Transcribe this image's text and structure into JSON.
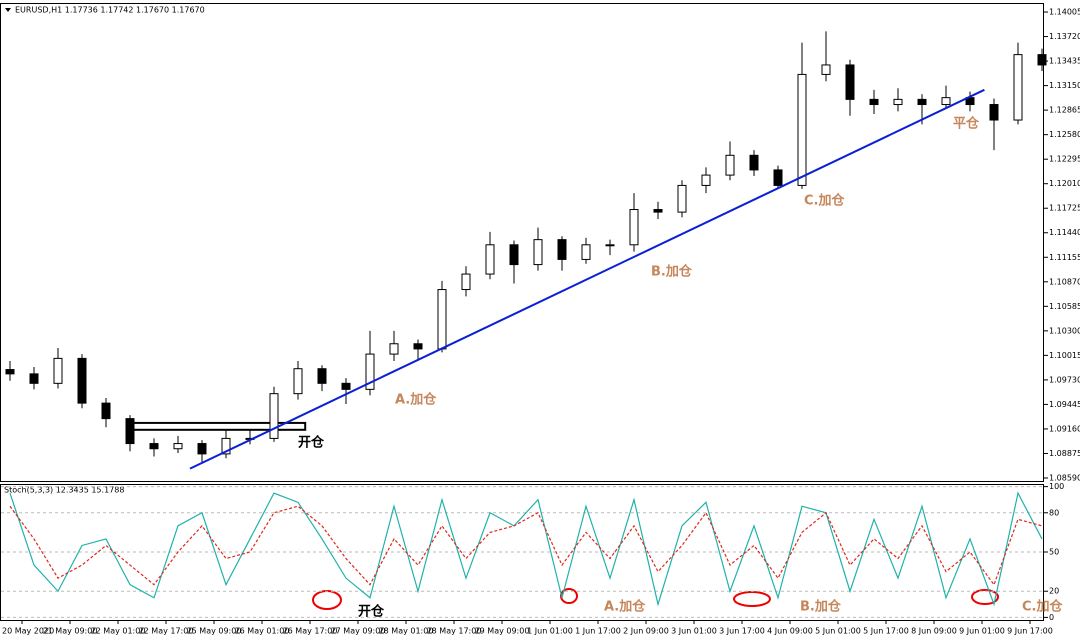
{
  "chart_data": [
    {
      "type": "candlestick",
      "title": "EURUSD,H1  1.17736 1.17742 1.17670 1.17670",
      "categories": [
        "20 May 2020",
        null,
        "21 May 09:00",
        null,
        "22 May 01:00",
        null,
        "22 May 17:00",
        null,
        "25 May 09:00",
        null,
        "26 May 01:00",
        null,
        "26 May 17:00",
        null,
        "27 May 09:00",
        null,
        "28 May 01:00",
        null,
        "28 May 17:00",
        null,
        "29 May 09:00",
        null,
        "1 Jun 01:00",
        null,
        "1 Jun 17:00",
        null,
        "2 Jun 09:00",
        null,
        "3 Jun 01:00",
        null,
        "3 Jun 17:00",
        null,
        "4 Jun 09:00",
        null,
        "5 Jun 01:00",
        null,
        "5 Jun 17:00",
        null,
        "8 Jun 09:00",
        null,
        "9 Jun 01:00",
        null,
        "9 Jun 17:00",
        null
      ],
      "open": [
        1.0985,
        1.098,
        1.0969,
        1.0998,
        1.0946,
        1.0928,
        1.0899,
        1.0893,
        1.0899,
        1.0887,
        1.0905,
        1.0905,
        1.0957,
        1.0986,
        1.0969,
        1.0962,
        1.1003,
        1.1015,
        1.1009,
        1.1078,
        1.1096,
        1.113,
        1.1107,
        1.1136,
        1.1113,
        1.113,
        1.113,
        1.1171,
        1.1168,
        1.1199,
        1.1211,
        1.1234,
        1.1217,
        1.1199,
        1.1328,
        1.1339,
        1.1299,
        1.1293,
        1.1299,
        1.1293,
        1.1301,
        1.1293,
        1.1275,
        1.1351
      ],
      "high": [
        1.0995,
        1.0988,
        1.101,
        1.1003,
        1.0952,
        1.0932,
        1.0905,
        1.0908,
        1.0903,
        1.0914,
        1.0915,
        1.0965,
        1.0995,
        1.099,
        1.0975,
        1.103,
        1.103,
        1.102,
        1.1088,
        1.1105,
        1.1145,
        1.1135,
        1.115,
        1.114,
        1.1138,
        1.1136,
        1.119,
        1.118,
        1.1205,
        1.122,
        1.125,
        1.124,
        1.1222,
        1.1365,
        1.1378,
        1.1345,
        1.131,
        1.1312,
        1.1305,
        1.1315,
        1.1308,
        1.13,
        1.1365,
        1.1358
      ],
      "low": [
        1.0972,
        1.0962,
        1.0963,
        1.094,
        1.0918,
        1.089,
        1.0884,
        1.0888,
        1.0876,
        1.0882,
        1.0898,
        1.0901,
        1.095,
        1.096,
        1.0945,
        1.0955,
        1.0995,
        1.0995,
        1.1005,
        1.107,
        1.109,
        1.1085,
        1.11,
        1.11,
        1.1108,
        1.1118,
        1.1122,
        1.116,
        1.1162,
        1.119,
        1.1205,
        1.121,
        1.1195,
        1.1195,
        1.132,
        1.128,
        1.1282,
        1.1285,
        1.127,
        1.1288,
        1.1285,
        1.124,
        1.127,
        1.1332
      ],
      "close": [
        1.098,
        1.0969,
        1.0998,
        1.0946,
        1.0928,
        1.0899,
        1.0893,
        1.0899,
        1.0887,
        1.0905,
        1.0905,
        1.0957,
        1.0986,
        1.0969,
        1.0962,
        1.1003,
        1.1015,
        1.1009,
        1.1078,
        1.1096,
        1.113,
        1.1107,
        1.1136,
        1.1113,
        1.113,
        1.113,
        1.1171,
        1.1168,
        1.1199,
        1.1211,
        1.1234,
        1.1217,
        1.1199,
        1.1328,
        1.1339,
        1.1299,
        1.1293,
        1.1299,
        1.1293,
        1.1301,
        1.1293,
        1.1275,
        1.1351,
        1.1339
      ],
      "ylim": [
        1.08555,
        1.1411
      ],
      "yticks": [
        1.14005,
        {
          "value": 1.1372,
          "label": "1.13720"
        },
        1.13435,
        {
          "value": 1.1315,
          "label": "1.13150"
        },
        1.12865,
        {
          "value": 1.1258,
          "label": "1.12580"
        },
        1.12295,
        {
          "value": 1.1201,
          "label": "1.12010"
        },
        1.11725,
        {
          "value": 1.1144,
          "label": "1.11440"
        },
        1.11155,
        {
          "value": 1.1087,
          "label": "1.10870"
        },
        1.10585,
        {
          "value": 1.103,
          "label": "1.10300"
        },
        1.10015,
        {
          "value": 1.0973,
          "label": "1.09730"
        },
        1.09445,
        {
          "value": 1.0916,
          "label": "1.09160"
        },
        1.08875,
        {
          "value": 1.0859,
          "label": "1.08590"
        }
      ],
      "trendline": {
        "color": "#0a1fd6",
        "x": [
          7.5,
          40.6
        ],
        "y": [
          1.08699,
          1.13101
        ]
      },
      "range_box": {
        "x": [
          4.9,
          12.3
        ],
        "y": [
          1.0915,
          1.0923
        ]
      },
      "annotations": [
        "开仓",
        "A.加仓",
        "B.加仓",
        "C.加仓",
        "平仓"
      ]
    },
    {
      "type": "line",
      "title": "Stoch(5,3,3) 12.3435 15.1788",
      "series": [
        {
          "color": "#20b2aa",
          "values": [
            95,
            40,
            20,
            55,
            60,
            25,
            15,
            70,
            80,
            25,
            60,
            95,
            88,
            60,
            30,
            15,
            85,
            20,
            90,
            30,
            80,
            70,
            90,
            15,
            85,
            30,
            90,
            10,
            70,
            88,
            20,
            70,
            15,
            85,
            80,
            20,
            75,
            30,
            85,
            15,
            60,
            10,
            95,
            60
          ]
        },
        {
          "color": "#e0281c",
          "values": [
            85,
            60,
            30,
            40,
            55,
            40,
            25,
            50,
            70,
            45,
            50,
            80,
            85,
            70,
            45,
            25,
            60,
            40,
            70,
            45,
            65,
            70,
            80,
            40,
            65,
            45,
            70,
            35,
            55,
            80,
            40,
            55,
            30,
            65,
            80,
            40,
            60,
            45,
            70,
            35,
            50,
            25,
            75,
            70
          ]
        }
      ],
      "ylim": [
        -2,
        102
      ],
      "yticks": [
        100,
        80,
        50,
        20,
        0
      ],
      "grid": true,
      "annotations": [
        "开仓",
        "A.加仓",
        "B.加仓",
        "C.加仓"
      ]
    }
  ]
}
